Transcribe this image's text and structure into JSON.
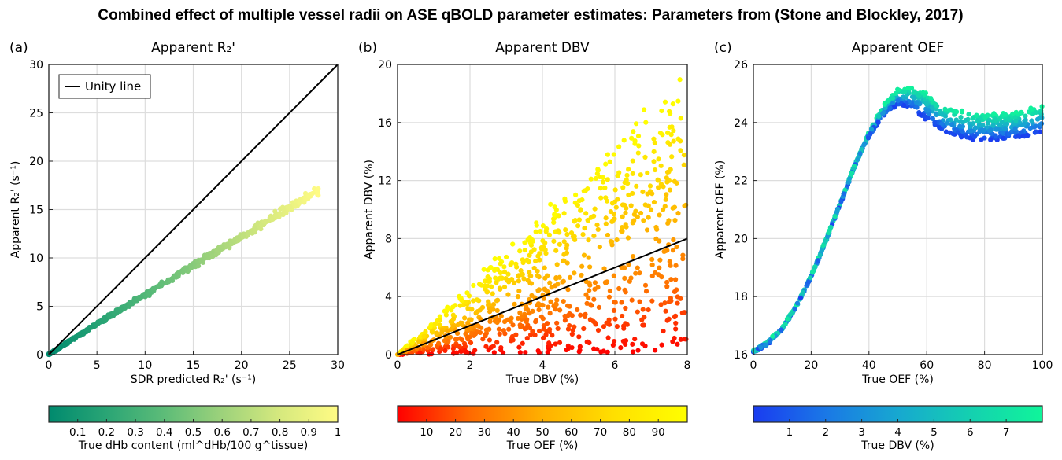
{
  "figure_title": "Combined effect of multiple vessel radii on ASE qBOLD parameter estimates: Parameters from (Stone and Blockley, 2017)",
  "chart_data": [
    {
      "panel": "(a)",
      "type": "scatter",
      "title": "Apparent R₂'",
      "xlabel": "SDR predicted R₂' (s⁻¹)",
      "ylabel": "Apparent R₂' (s⁻¹)",
      "xlim": [
        0,
        30
      ],
      "ylim": [
        0,
        30
      ],
      "xticks": [
        0,
        5,
        10,
        15,
        20,
        25,
        30
      ],
      "yticks": [
        0,
        5,
        10,
        15,
        20,
        25,
        30
      ],
      "grid": true,
      "reference_line": {
        "label": "Unity line",
        "x": [
          0,
          30
        ],
        "y": [
          0,
          30
        ]
      },
      "legend": {
        "position": "top-left",
        "entries": [
          "Unity line"
        ]
      },
      "trend": {
        "x": [
          0,
          5,
          10,
          15,
          20,
          25,
          28
        ],
        "y": [
          0,
          3.2,
          6.2,
          9.2,
          12.2,
          15.2,
          17.0
        ],
        "spread": 0.35
      },
      "colorbar": {
        "label": "True dHb content (ml^dHb/100 g^tissue)",
        "range": [
          0.0,
          1.0
        ],
        "ticks": [
          "0.1",
          "0.2",
          "0.3",
          "0.4",
          "0.5",
          "0.6",
          "0.7",
          "0.8",
          "0.9",
          "1"
        ],
        "colors": [
          "#008a6e",
          "#2aa575",
          "#5dbc78",
          "#9dd27b",
          "#d6e97e",
          "#fffb84"
        ]
      },
      "n_points": 700
    },
    {
      "panel": "(b)",
      "type": "scatter",
      "title": "Apparent DBV",
      "xlabel": "True DBV (%)",
      "ylabel": "Apparent DBV (%)",
      "xlim": [
        0,
        8
      ],
      "ylim": [
        0,
        20
      ],
      "xticks": [
        0,
        2,
        4,
        6,
        8
      ],
      "yticks": [
        0,
        4,
        8,
        12,
        16,
        20
      ],
      "grid": true,
      "reference_line": {
        "label": "Unity line",
        "x": [
          0,
          8
        ],
        "y": [
          0,
          8
        ]
      },
      "relation": "apparent DBV ≈ true DBV × (0 to 2.4), scaling increasing with true OEF",
      "colorbar": {
        "label": "True OEF (%)",
        "range": [
          0,
          100
        ],
        "ticks": [
          "10",
          "20",
          "30",
          "40",
          "50",
          "60",
          "70",
          "80",
          "90"
        ],
        "colors": [
          "#ff0000",
          "#ff6a00",
          "#ffb000",
          "#ffe000",
          "#ffff00"
        ]
      },
      "n_points": 900
    },
    {
      "panel": "(c)",
      "type": "scatter",
      "title": "Apparent OEF",
      "xlabel": "True OEF (%)",
      "ylabel": "Apparent OEF (%)",
      "xlim": [
        0,
        100
      ],
      "ylim": [
        16,
        26
      ],
      "xticks": [
        0,
        20,
        40,
        60,
        80,
        100
      ],
      "yticks": [
        16,
        18,
        20,
        22,
        24,
        26
      ],
      "grid": true,
      "trend": {
        "x": [
          0,
          5,
          10,
          15,
          20,
          25,
          30,
          35,
          40,
          45,
          50,
          55,
          60,
          65,
          70,
          75,
          80,
          85,
          90,
          95,
          100
        ],
        "y": [
          16.1,
          16.4,
          16.9,
          17.7,
          18.7,
          19.9,
          21.2,
          22.5,
          23.6,
          24.4,
          24.85,
          24.8,
          24.5,
          24.15,
          23.95,
          23.85,
          23.8,
          23.8,
          23.85,
          23.95,
          24.1
        ]
      },
      "spread_high_dbv": 0.9,
      "colorbar": {
        "label": "True DBV (%)",
        "range": [
          0,
          8
        ],
        "ticks": [
          "1",
          "2",
          "3",
          "4",
          "5",
          "6",
          "7"
        ],
        "colors": [
          "#1a3cf0",
          "#1a78e6",
          "#17a8d0",
          "#14d0b0",
          "#10f59a"
        ]
      },
      "n_points": 800
    }
  ]
}
